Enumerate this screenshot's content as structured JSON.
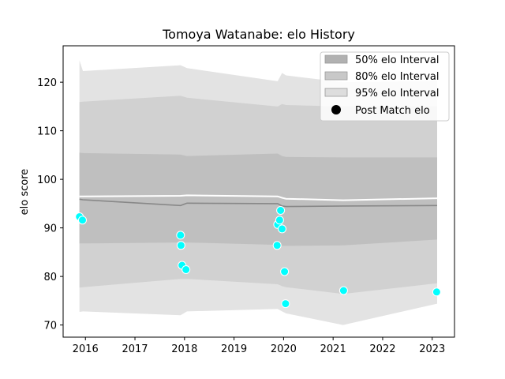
{
  "chart_data": {
    "type": "line",
    "title": "Tomoya Watanabe: elo History",
    "xlabel": "",
    "ylabel": "elo score",
    "xlim": [
      2015.55,
      2023.45
    ],
    "ylim": [
      67.5,
      127.5
    ],
    "xticks": [
      2016,
      2017,
      2018,
      2019,
      2020,
      2021,
      2022,
      2023
    ],
    "yticks": [
      70,
      80,
      90,
      100,
      110,
      120
    ],
    "grid": false,
    "legend_position": "upper right",
    "colors": {
      "band95": "#e3e3e3",
      "band80": "#d1d1d1",
      "band50": "#bfbfbf",
      "mean_line": "#888888",
      "expected_line": "#ffffff",
      "points": "#00ffff",
      "points_edge": "#ffffff"
    },
    "legend": [
      {
        "label": "50% elo Interval",
        "kind": "patch",
        "color": "#b1b1b1"
      },
      {
        "label": "80% elo Interval",
        "kind": "patch",
        "color": "#c8c8c8"
      },
      {
        "label": "95% elo Interval",
        "kind": "patch",
        "color": "#dddddd"
      },
      {
        "label": "Post Match elo",
        "kind": "marker",
        "color": "#000000"
      }
    ],
    "x": [
      2015.88,
      2015.95,
      2017.92,
      2018.05,
      2019.88,
      2019.97,
      2020.05,
      2021.2,
      2023.1
    ],
    "bands": {
      "p95_upper": [
        124.5,
        122.3,
        123.5,
        122.9,
        120.2,
        121.9,
        121.4,
        120.0,
        120.3
      ],
      "p95_lower": [
        72.7,
        72.8,
        72.0,
        72.8,
        73.3,
        72.8,
        72.4,
        70.0,
        74.4
      ],
      "p80_upper": [
        115.9,
        116.0,
        117.2,
        116.8,
        115.0,
        115.5,
        115.3,
        115.0,
        115.1
      ],
      "p80_lower": [
        77.7,
        77.8,
        79.5,
        79.5,
        78.4,
        78.0,
        77.8,
        76.4,
        78.6
      ],
      "p50_upper": [
        105.5,
        105.4,
        105.1,
        104.8,
        105.3,
        104.8,
        104.6,
        104.5,
        104.5
      ],
      "p50_lower": [
        86.8,
        86.8,
        87.0,
        87.0,
        86.5,
        86.3,
        86.3,
        86.4,
        87.6
      ]
    },
    "series": [
      {
        "values": [
          95.9,
          95.8,
          94.6,
          95.1,
          95.0,
          94.5,
          94.4,
          94.5,
          94.6
        ]
      },
      {
        "values": [
          96.5,
          96.5,
          96.6,
          96.7,
          96.5,
          96.2,
          96.0,
          95.7,
          96.1
        ]
      }
    ],
    "points": [
      {
        "x": 2015.88,
        "y": 92.3
      },
      {
        "x": 2015.94,
        "y": 91.6
      },
      {
        "x": 2017.92,
        "y": 88.5
      },
      {
        "x": 2017.93,
        "y": 86.4
      },
      {
        "x": 2017.95,
        "y": 82.3
      },
      {
        "x": 2018.03,
        "y": 81.4
      },
      {
        "x": 2019.87,
        "y": 86.4
      },
      {
        "x": 2019.88,
        "y": 90.7
      },
      {
        "x": 2019.92,
        "y": 91.6
      },
      {
        "x": 2019.94,
        "y": 93.6
      },
      {
        "x": 2019.97,
        "y": 89.8
      },
      {
        "x": 2020.02,
        "y": 81.0
      },
      {
        "x": 2020.04,
        "y": 74.4
      },
      {
        "x": 2021.21,
        "y": 77.1
      },
      {
        "x": 2023.09,
        "y": 76.8
      }
    ]
  }
}
